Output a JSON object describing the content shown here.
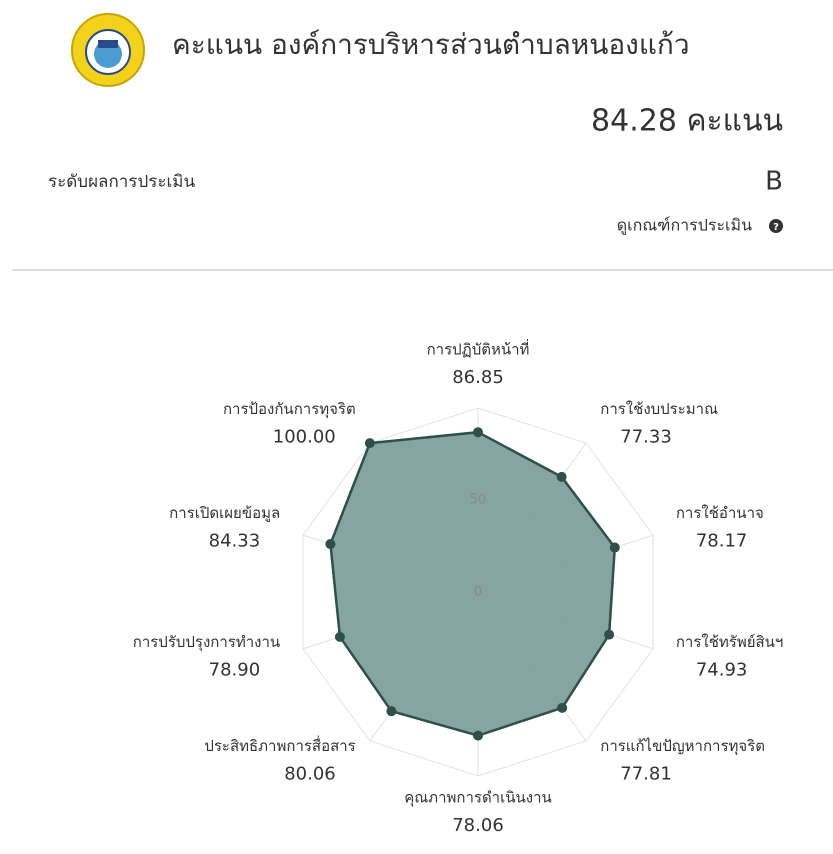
{
  "header": {
    "title": "คะแนน องค์การบริหารส่วนตำบลหนองแก้ว",
    "score": "84.28 คะแนน",
    "level_label": "ระดับผลการประเมิน",
    "level": "B",
    "criteria_link": "ดูเกณฑ์การประเมิน"
  },
  "chart_data": {
    "type": "radar",
    "categories": [
      "การปฏิบัติหน้าที่",
      "การใช้งบประมาณ",
      "การใช้อำนาจ",
      "การใช้ทรัพย์สินฯ",
      "การแก้ไขปัญหาการทุจริต",
      "คุณภาพการดำเนินงาน",
      "ประสิทธิภาพการสื่อสาร",
      "การปรับปรุงการทำงาน",
      "การเปิดเผยข้อมูล",
      "การป้องกันการทุจริต"
    ],
    "values": [
      86.85,
      77.33,
      78.17,
      74.93,
      77.81,
      78.06,
      80.06,
      78.9,
      84.33,
      100
    ],
    "value_labels": [
      "86.85",
      "77.33",
      "78.17",
      "74.93",
      "77.81",
      "78.06",
      "80.06",
      "78.90",
      "84.33",
      "100.00"
    ],
    "color": "#2f4f4a",
    "fill": "#7f9f9b",
    "rlim": [
      0,
      100
    ],
    "rticks": [
      0,
      50
    ],
    "grid": true
  }
}
